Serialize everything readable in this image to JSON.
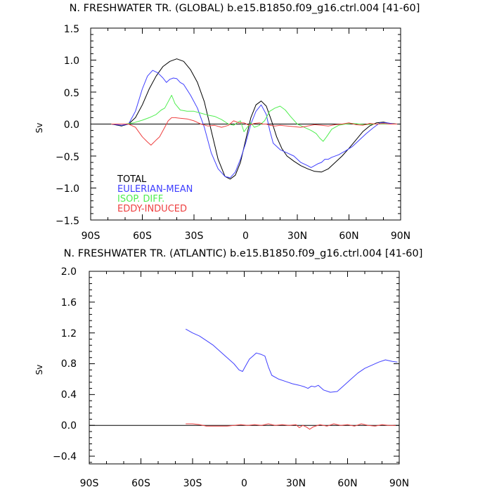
{
  "chart_data": [
    {
      "type": "line",
      "title": "N. FRESHWATER TR. (GLOBAL) b.e15.B1850.f09_g16.ctrl.004 [41-60]",
      "xlabel": "",
      "ylabel": "Sv",
      "xlim": [
        -90,
        90
      ],
      "ylim": [
        -1.5,
        1.5
      ],
      "xticks": [
        -90,
        -60,
        -30,
        0,
        30,
        60,
        90
      ],
      "xtick_labels": [
        "90S",
        "60S",
        "30S",
        "0",
        "30N",
        "60N",
        "90N"
      ],
      "yticks": [
        -1.5,
        -1.0,
        -0.5,
        0.0,
        0.5,
        1.0,
        1.5
      ],
      "ytick_labels": [
        "−1.5",
        "−1.0",
        "−0.5",
        "0.0",
        "0.5",
        "1.0",
        "1.5"
      ],
      "grid": false,
      "legend_position": "lower-left",
      "zero_line": true,
      "series": [
        {
          "name": "TOTAL",
          "color": "#000000",
          "x": [
            -78,
            -72,
            -68,
            -64,
            -60,
            -56,
            -52,
            -48,
            -44,
            -40,
            -36,
            -32,
            -28,
            -24,
            -20,
            -16,
            -12,
            -9,
            -6,
            -3,
            0,
            3,
            6,
            9,
            12,
            15,
            18,
            21,
            24,
            28,
            32,
            36,
            40,
            44,
            48,
            52,
            56,
            60,
            64,
            68,
            72,
            76,
            80,
            84,
            88
          ],
          "y": [
            0.0,
            -0.03,
            0.0,
            0.1,
            0.3,
            0.55,
            0.75,
            0.9,
            0.98,
            1.02,
            0.98,
            0.85,
            0.65,
            0.35,
            -0.1,
            -0.55,
            -0.82,
            -0.86,
            -0.8,
            -0.6,
            -0.25,
            0.1,
            0.3,
            0.36,
            0.28,
            0.05,
            -0.2,
            -0.38,
            -0.5,
            -0.58,
            -0.65,
            -0.7,
            -0.74,
            -0.75,
            -0.7,
            -0.6,
            -0.5,
            -0.38,
            -0.25,
            -0.12,
            -0.03,
            0.02,
            0.03,
            0.01,
            0.0
          ]
        },
        {
          "name": "EULERIAN-MEAN",
          "color": "#4040ff",
          "x": [
            -78,
            -72,
            -68,
            -64,
            -60,
            -57,
            -54,
            -51,
            -48,
            -46,
            -44,
            -42,
            -40,
            -38,
            -36,
            -32,
            -28,
            -24,
            -20,
            -16,
            -12,
            -9,
            -6,
            -3,
            0,
            3,
            6,
            9,
            12,
            14,
            16,
            20,
            24,
            28,
            32,
            36,
            38,
            40,
            42,
            44,
            46,
            48,
            50,
            54,
            58,
            62,
            66,
            70,
            74,
            78,
            82,
            86,
            88
          ],
          "y": [
            0.0,
            -0.02,
            0.0,
            0.2,
            0.55,
            0.75,
            0.84,
            0.8,
            0.72,
            0.65,
            0.7,
            0.72,
            0.71,
            0.65,
            0.62,
            0.45,
            0.25,
            -0.05,
            -0.45,
            -0.7,
            -0.82,
            -0.84,
            -0.75,
            -0.55,
            -0.3,
            0.0,
            0.2,
            0.3,
            0.15,
            -0.1,
            -0.3,
            -0.4,
            -0.45,
            -0.5,
            -0.6,
            -0.65,
            -0.68,
            -0.65,
            -0.62,
            -0.6,
            -0.55,
            -0.55,
            -0.52,
            -0.48,
            -0.42,
            -0.35,
            -0.25,
            -0.15,
            -0.06,
            0.02,
            0.02,
            0.0,
            0.0
          ]
        },
        {
          "name": "ISOP. DIFF.",
          "color": "#50ee50",
          "x": [
            -78,
            -70,
            -65,
            -60,
            -56,
            -52,
            -49,
            -47,
            -45,
            -43,
            -41,
            -38,
            -34,
            -30,
            -26,
            -22,
            -18,
            -14,
            -10,
            -7,
            -5,
            -3,
            -1,
            1,
            3,
            5,
            8,
            11,
            14,
            17,
            20,
            23,
            26,
            30,
            34,
            38,
            41,
            43,
            45,
            47,
            50,
            54,
            58,
            62,
            66,
            70,
            75,
            80,
            85,
            88
          ],
          "y": [
            0.0,
            0.0,
            0.02,
            0.06,
            0.1,
            0.15,
            0.22,
            0.25,
            0.35,
            0.45,
            0.32,
            0.22,
            0.2,
            0.2,
            0.17,
            0.14,
            0.12,
            0.07,
            0.0,
            -0.02,
            0.02,
            0.05,
            -0.12,
            -0.05,
            0.02,
            -0.05,
            -0.02,
            0.05,
            0.2,
            0.25,
            0.28,
            0.22,
            0.12,
            0.0,
            -0.05,
            -0.1,
            -0.15,
            -0.22,
            -0.27,
            -0.2,
            -0.08,
            -0.02,
            0.0,
            0.01,
            0.0,
            -0.01,
            0.0,
            0.0,
            0.0,
            0.0
          ]
        },
        {
          "name": "EDDY-INDUCED",
          "color": "#ee4040",
          "x": [
            -78,
            -72,
            -68,
            -64,
            -60,
            -57,
            -55,
            -52,
            -50,
            -47,
            -45,
            -43,
            -41,
            -38,
            -34,
            -30,
            -26,
            -22,
            -18,
            -14,
            -10,
            -7,
            -4,
            -1,
            2,
            5,
            8,
            10,
            12,
            14,
            17,
            20,
            24,
            28,
            32,
            36,
            40,
            44,
            48,
            52,
            56,
            60,
            64,
            68,
            72,
            76,
            80,
            84,
            88
          ],
          "y": [
            0.0,
            0.0,
            0.0,
            -0.05,
            -0.2,
            -0.28,
            -0.33,
            -0.25,
            -0.2,
            -0.05,
            0.05,
            0.1,
            0.1,
            0.09,
            0.08,
            0.05,
            0.0,
            -0.03,
            -0.02,
            -0.05,
            -0.02,
            0.05,
            0.02,
            0.02,
            -0.02,
            0.01,
            0.02,
            0.0,
            0.0,
            -0.02,
            -0.03,
            -0.02,
            -0.03,
            -0.04,
            -0.05,
            -0.03,
            -0.01,
            -0.02,
            -0.03,
            -0.01,
            0.0,
            0.02,
            -0.01,
            -0.02,
            0.01,
            0.0,
            0.01,
            0.0,
            0.0
          ]
        }
      ]
    },
    {
      "type": "line",
      "title": "N. FRESHWATER TR. (ATLANTIC) b.e15.B1850.f09_g16.ctrl.004 [41-60]",
      "xlabel": "",
      "ylabel": "Sv",
      "xlim": [
        -90,
        90
      ],
      "ylim": [
        -0.5,
        2.0
      ],
      "xticks": [
        -90,
        -60,
        -30,
        0,
        30,
        60,
        90
      ],
      "xtick_labels": [
        "90S",
        "60S",
        "30S",
        "0",
        "30N",
        "60N",
        "90N"
      ],
      "yticks": [
        -0.4,
        0.0,
        0.4,
        0.8,
        1.2,
        1.6,
        2.0
      ],
      "ytick_labels": [
        "−0.4",
        "0.0",
        "0.4",
        "0.8",
        "1.2",
        "1.6",
        "2.0"
      ],
      "grid": false,
      "zero_line": true,
      "series": [
        {
          "name": "EULERIAN-MEAN",
          "color": "#4040ff",
          "x": [
            -34,
            -30,
            -26,
            -22,
            -18,
            -14,
            -10,
            -6,
            -3,
            -1,
            1,
            3,
            5,
            7,
            10,
            12,
            14,
            16,
            20,
            24,
            28,
            32,
            35,
            37,
            39,
            41,
            43,
            46,
            50,
            54,
            58,
            62,
            66,
            70,
            74,
            78,
            82,
            86,
            89
          ],
          "y": [
            1.25,
            1.2,
            1.16,
            1.1,
            1.04,
            0.96,
            0.88,
            0.8,
            0.72,
            0.7,
            0.78,
            0.86,
            0.9,
            0.94,
            0.92,
            0.9,
            0.76,
            0.65,
            0.6,
            0.57,
            0.54,
            0.52,
            0.5,
            0.48,
            0.51,
            0.5,
            0.52,
            0.46,
            0.43,
            0.44,
            0.52,
            0.6,
            0.68,
            0.74,
            0.78,
            0.82,
            0.85,
            0.83,
            0.82
          ]
        },
        {
          "name": "EDDY-INDUCED",
          "color": "#ee4040",
          "x": [
            -34,
            -30,
            -26,
            -22,
            -18,
            -14,
            -10,
            -6,
            -2,
            2,
            6,
            10,
            14,
            18,
            22,
            26,
            30,
            32,
            34,
            36,
            38,
            40,
            44,
            48,
            52,
            56,
            60,
            64,
            68,
            72,
            76,
            80,
            84,
            88
          ],
          "y": [
            0.02,
            0.02,
            0.01,
            -0.01,
            -0.01,
            -0.01,
            -0.01,
            0.0,
            0.01,
            0.0,
            0.01,
            0.0,
            0.02,
            0.0,
            0.01,
            0.0,
            0.01,
            -0.03,
            0.0,
            -0.02,
            -0.05,
            -0.02,
            0.01,
            -0.01,
            0.02,
            0.0,
            0.01,
            -0.01,
            0.02,
            0.0,
            -0.01,
            0.01,
            0.0,
            0.0
          ]
        }
      ]
    }
  ]
}
